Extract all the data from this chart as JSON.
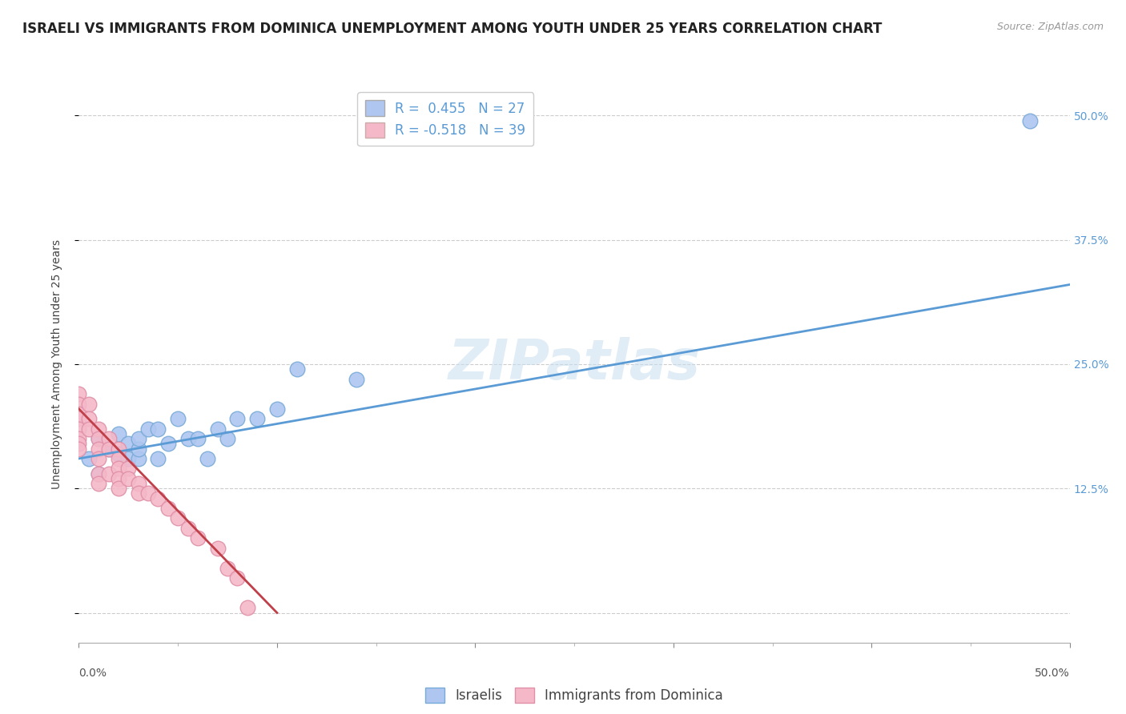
{
  "title": "ISRAELI VS IMMIGRANTS FROM DOMINICA UNEMPLOYMENT AMONG YOUTH UNDER 25 YEARS CORRELATION CHART",
  "source": "Source: ZipAtlas.com",
  "ylabel": "Unemployment Among Youth under 25 years",
  "xmin": 0.0,
  "xmax": 0.5,
  "ymin": -0.03,
  "ymax": 0.53,
  "yticks": [
    0.0,
    0.125,
    0.25,
    0.375,
    0.5
  ],
  "ytick_labels": [
    "",
    "12.5%",
    "25.0%",
    "37.5%",
    "50.0%"
  ],
  "watermark": "ZIPatlas",
  "legend_items": [
    {
      "color": "#aec6f0",
      "R": 0.455,
      "N": 27,
      "label": "Israelis"
    },
    {
      "color": "#f4b8c8",
      "R": -0.518,
      "N": 39,
      "label": "Immigrants from Dominica"
    }
  ],
  "israeli_scatter_x": [
    0.005,
    0.01,
    0.01,
    0.015,
    0.02,
    0.02,
    0.025,
    0.025,
    0.03,
    0.03,
    0.03,
    0.035,
    0.04,
    0.04,
    0.045,
    0.05,
    0.055,
    0.06,
    0.065,
    0.07,
    0.075,
    0.08,
    0.09,
    0.1,
    0.11,
    0.14,
    0.48
  ],
  "israeli_scatter_y": [
    0.155,
    0.14,
    0.175,
    0.165,
    0.16,
    0.18,
    0.155,
    0.17,
    0.155,
    0.165,
    0.175,
    0.185,
    0.155,
    0.185,
    0.17,
    0.195,
    0.175,
    0.175,
    0.155,
    0.185,
    0.175,
    0.195,
    0.195,
    0.205,
    0.245,
    0.235,
    0.495
  ],
  "dominica_scatter_x": [
    0.0,
    0.0,
    0.0,
    0.0,
    0.0,
    0.0,
    0.0,
    0.0,
    0.005,
    0.005,
    0.005,
    0.01,
    0.01,
    0.01,
    0.01,
    0.01,
    0.01,
    0.015,
    0.015,
    0.015,
    0.02,
    0.02,
    0.02,
    0.02,
    0.02,
    0.025,
    0.025,
    0.03,
    0.03,
    0.035,
    0.04,
    0.045,
    0.05,
    0.055,
    0.06,
    0.07,
    0.075,
    0.08,
    0.085
  ],
  "dominica_scatter_y": [
    0.22,
    0.21,
    0.2,
    0.195,
    0.185,
    0.175,
    0.17,
    0.165,
    0.21,
    0.195,
    0.185,
    0.185,
    0.175,
    0.165,
    0.155,
    0.14,
    0.13,
    0.175,
    0.165,
    0.14,
    0.165,
    0.155,
    0.145,
    0.135,
    0.125,
    0.145,
    0.135,
    0.13,
    0.12,
    0.12,
    0.115,
    0.105,
    0.095,
    0.085,
    0.075,
    0.065,
    0.045,
    0.035,
    0.005
  ],
  "israeli_line_x": [
    0.0,
    0.5
  ],
  "israeli_line_y": [
    0.155,
    0.33
  ],
  "dominica_line_x": [
    0.0,
    0.1
  ],
  "dominica_line_y": [
    0.205,
    0.0
  ],
  "israeli_line_color": "#5b9bd5",
  "dominica_line_color": "#c0404a",
  "scatter_israeli_color": "#aec6f0",
  "scatter_dominica_color": "#f4b8c8",
  "scatter_israeli_edge": "#7aabd8",
  "scatter_dominica_edge": "#e090a8",
  "background_color": "#ffffff",
  "grid_color": "#cccccc",
  "title_fontsize": 12,
  "axis_label_fontsize": 10,
  "tick_fontsize": 10,
  "legend_fontsize": 12
}
